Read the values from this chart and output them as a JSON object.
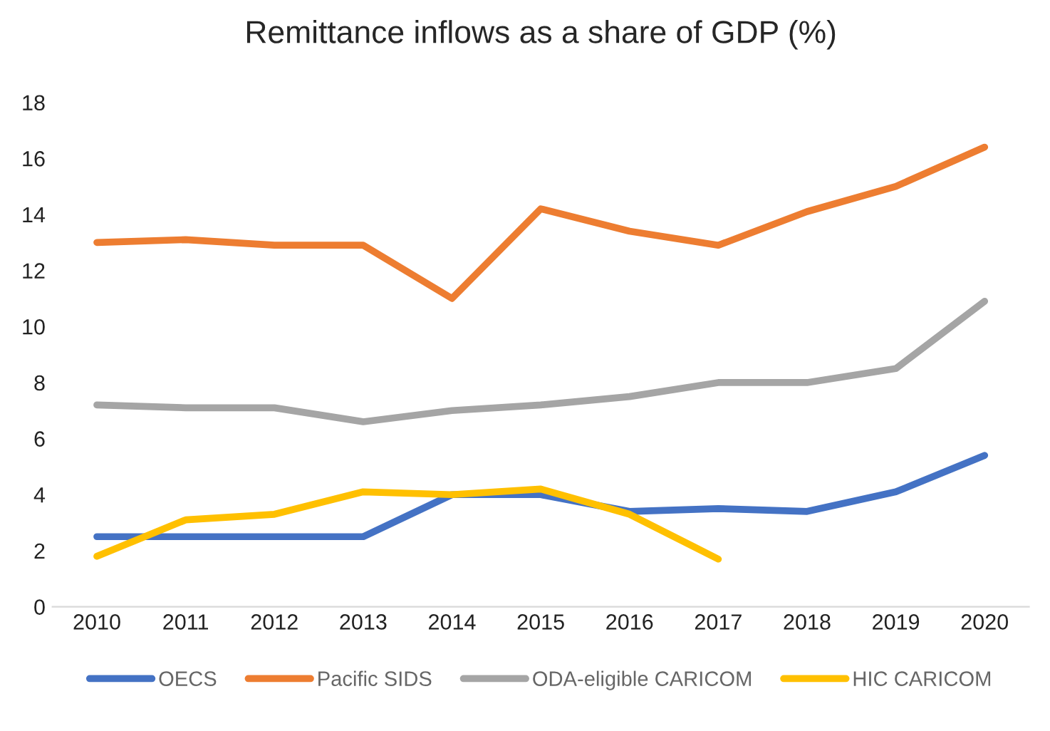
{
  "chart_data": {
    "type": "line",
    "title": "Remittance inflows as a share of GDP (%)",
    "categories": [
      "2010",
      "2011",
      "2012",
      "2013",
      "2014",
      "2015",
      "2016",
      "2017",
      "2018",
      "2019",
      "2020"
    ],
    "series": [
      {
        "name": "OECS",
        "color": "#4472c4",
        "values": [
          2.5,
          2.5,
          2.5,
          2.5,
          4.0,
          4.0,
          3.4,
          3.5,
          3.4,
          4.1,
          5.4
        ]
      },
      {
        "name": "Pacific SIDS",
        "color": "#ed7d31",
        "values": [
          13.0,
          13.1,
          12.9,
          12.9,
          11.0,
          14.2,
          13.4,
          12.9,
          14.1,
          15.0,
          16.4
        ]
      },
      {
        "name": "ODA-eligible CARICOM",
        "color": "#a5a5a5",
        "values": [
          7.2,
          7.1,
          7.1,
          6.6,
          7.0,
          7.2,
          7.5,
          8.0,
          8.0,
          8.5,
          10.9
        ]
      },
      {
        "name": "HIC CARICOM",
        "color": "#ffc000",
        "values": [
          1.8,
          3.1,
          3.3,
          4.1,
          4.0,
          4.2,
          3.3,
          1.7,
          null,
          null,
          null
        ]
      }
    ],
    "ylim": [
      0,
      18
    ],
    "yticks": [
      0,
      2,
      4,
      6,
      8,
      10,
      12,
      14,
      16,
      18
    ],
    "grid": false,
    "legend": "bottom",
    "marker": "none",
    "line_style": "solid"
  }
}
